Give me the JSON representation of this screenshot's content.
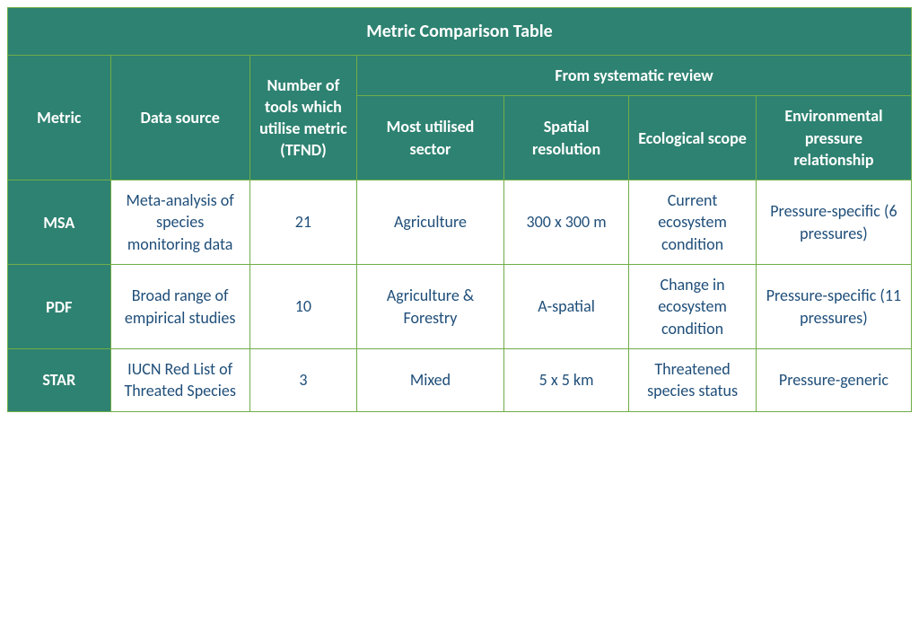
{
  "table": {
    "title": "Metric Comparison Table",
    "columns": {
      "metric": "Metric",
      "source": "Data source",
      "tools": "Number of tools which utilise metric (TFND)",
      "group": "From systematic review",
      "sector": "Most utilised sector",
      "spatial": "Spatial resolution",
      "scope": "Ecological scope",
      "pressure": "Environmental pressure relationship"
    },
    "rows": [
      {
        "metric": "MSA",
        "source": "Meta-analysis of species monitoring data",
        "tools": "21",
        "sector": "Agriculture",
        "spatial": "300 x 300 m",
        "scope": "Current ecosystem condition",
        "pressure": "Pressure-specific (6 pressures)"
      },
      {
        "metric": "PDF",
        "source": "Broad range of empirical studies",
        "tools": "10",
        "sector": "Agriculture & Forestry",
        "spatial": "A-spatial",
        "scope": "Change in ecosystem condition",
        "pressure": "Pressure-specific (11 pressures)"
      },
      {
        "metric": "STAR",
        "source": "IUCN Red List of Threated Species",
        "tools": "3",
        "sector": "Mixed",
        "spatial": "5 x 5 km",
        "scope": "Threatened species status",
        "pressure": "Pressure-generic"
      }
    ],
    "style": {
      "header_bg": "#2e8271",
      "header_fg": "#ffffff",
      "cell_bg": "#ffffff",
      "cell_fg": "#1f4e79",
      "border_color": "#70ad47",
      "title_fontsize_pt": 15,
      "header_fontsize_pt": 13,
      "cell_fontsize_pt": 13,
      "font_family": "Calibri"
    }
  }
}
